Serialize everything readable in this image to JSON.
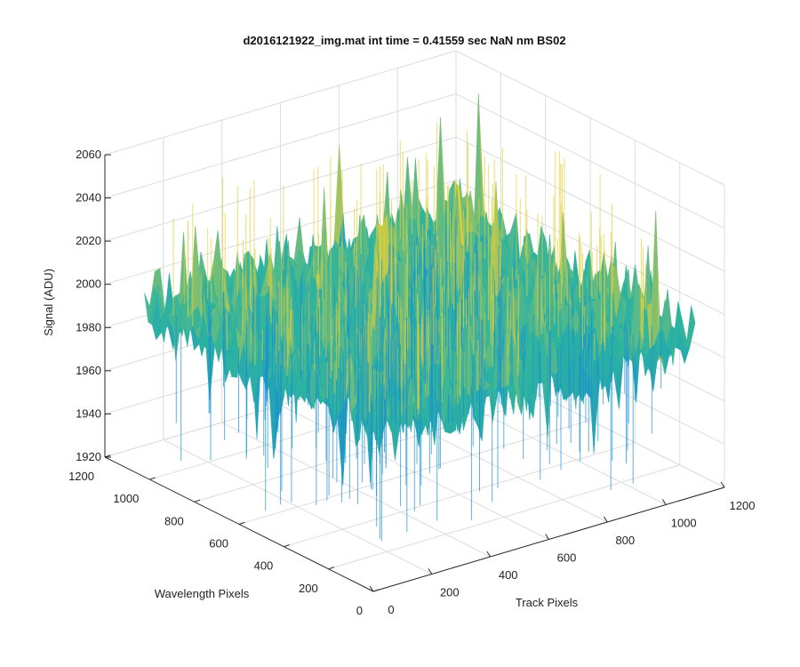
{
  "chart_data": {
    "type": "surface",
    "title": "d2016121922_img.mat int time = 0.41559 sec  NaN nm BS02",
    "xlabel": "Track Pixels",
    "ylabel": "Wavelength Pixels",
    "zlabel": "Signal (ADU)",
    "xlim": [
      0,
      1200
    ],
    "ylim": [
      0,
      1200
    ],
    "zlim": [
      1920,
      2060
    ],
    "x_ticks": [
      "0",
      "200",
      "400",
      "600",
      "800",
      "1000",
      "1200"
    ],
    "y_ticks": [
      "0",
      "200",
      "400",
      "600",
      "800",
      "1000",
      "1200"
    ],
    "z_ticks": [
      "1920",
      "1940",
      "1960",
      "1980",
      "2000",
      "2020",
      "2040",
      "2060"
    ],
    "grid": true,
    "colormap": "parula",
    "colors": {
      "low": "#1a8fd1",
      "mid": "#2db3a0",
      "high": "#e3cf3a"
    },
    "surface": {
      "x_range": [
        20,
        1100
      ],
      "y_range": [
        0,
        1050
      ],
      "z_mean": 1995,
      "z_noise_min": 1925,
      "z_noise_max": 2058
    }
  }
}
